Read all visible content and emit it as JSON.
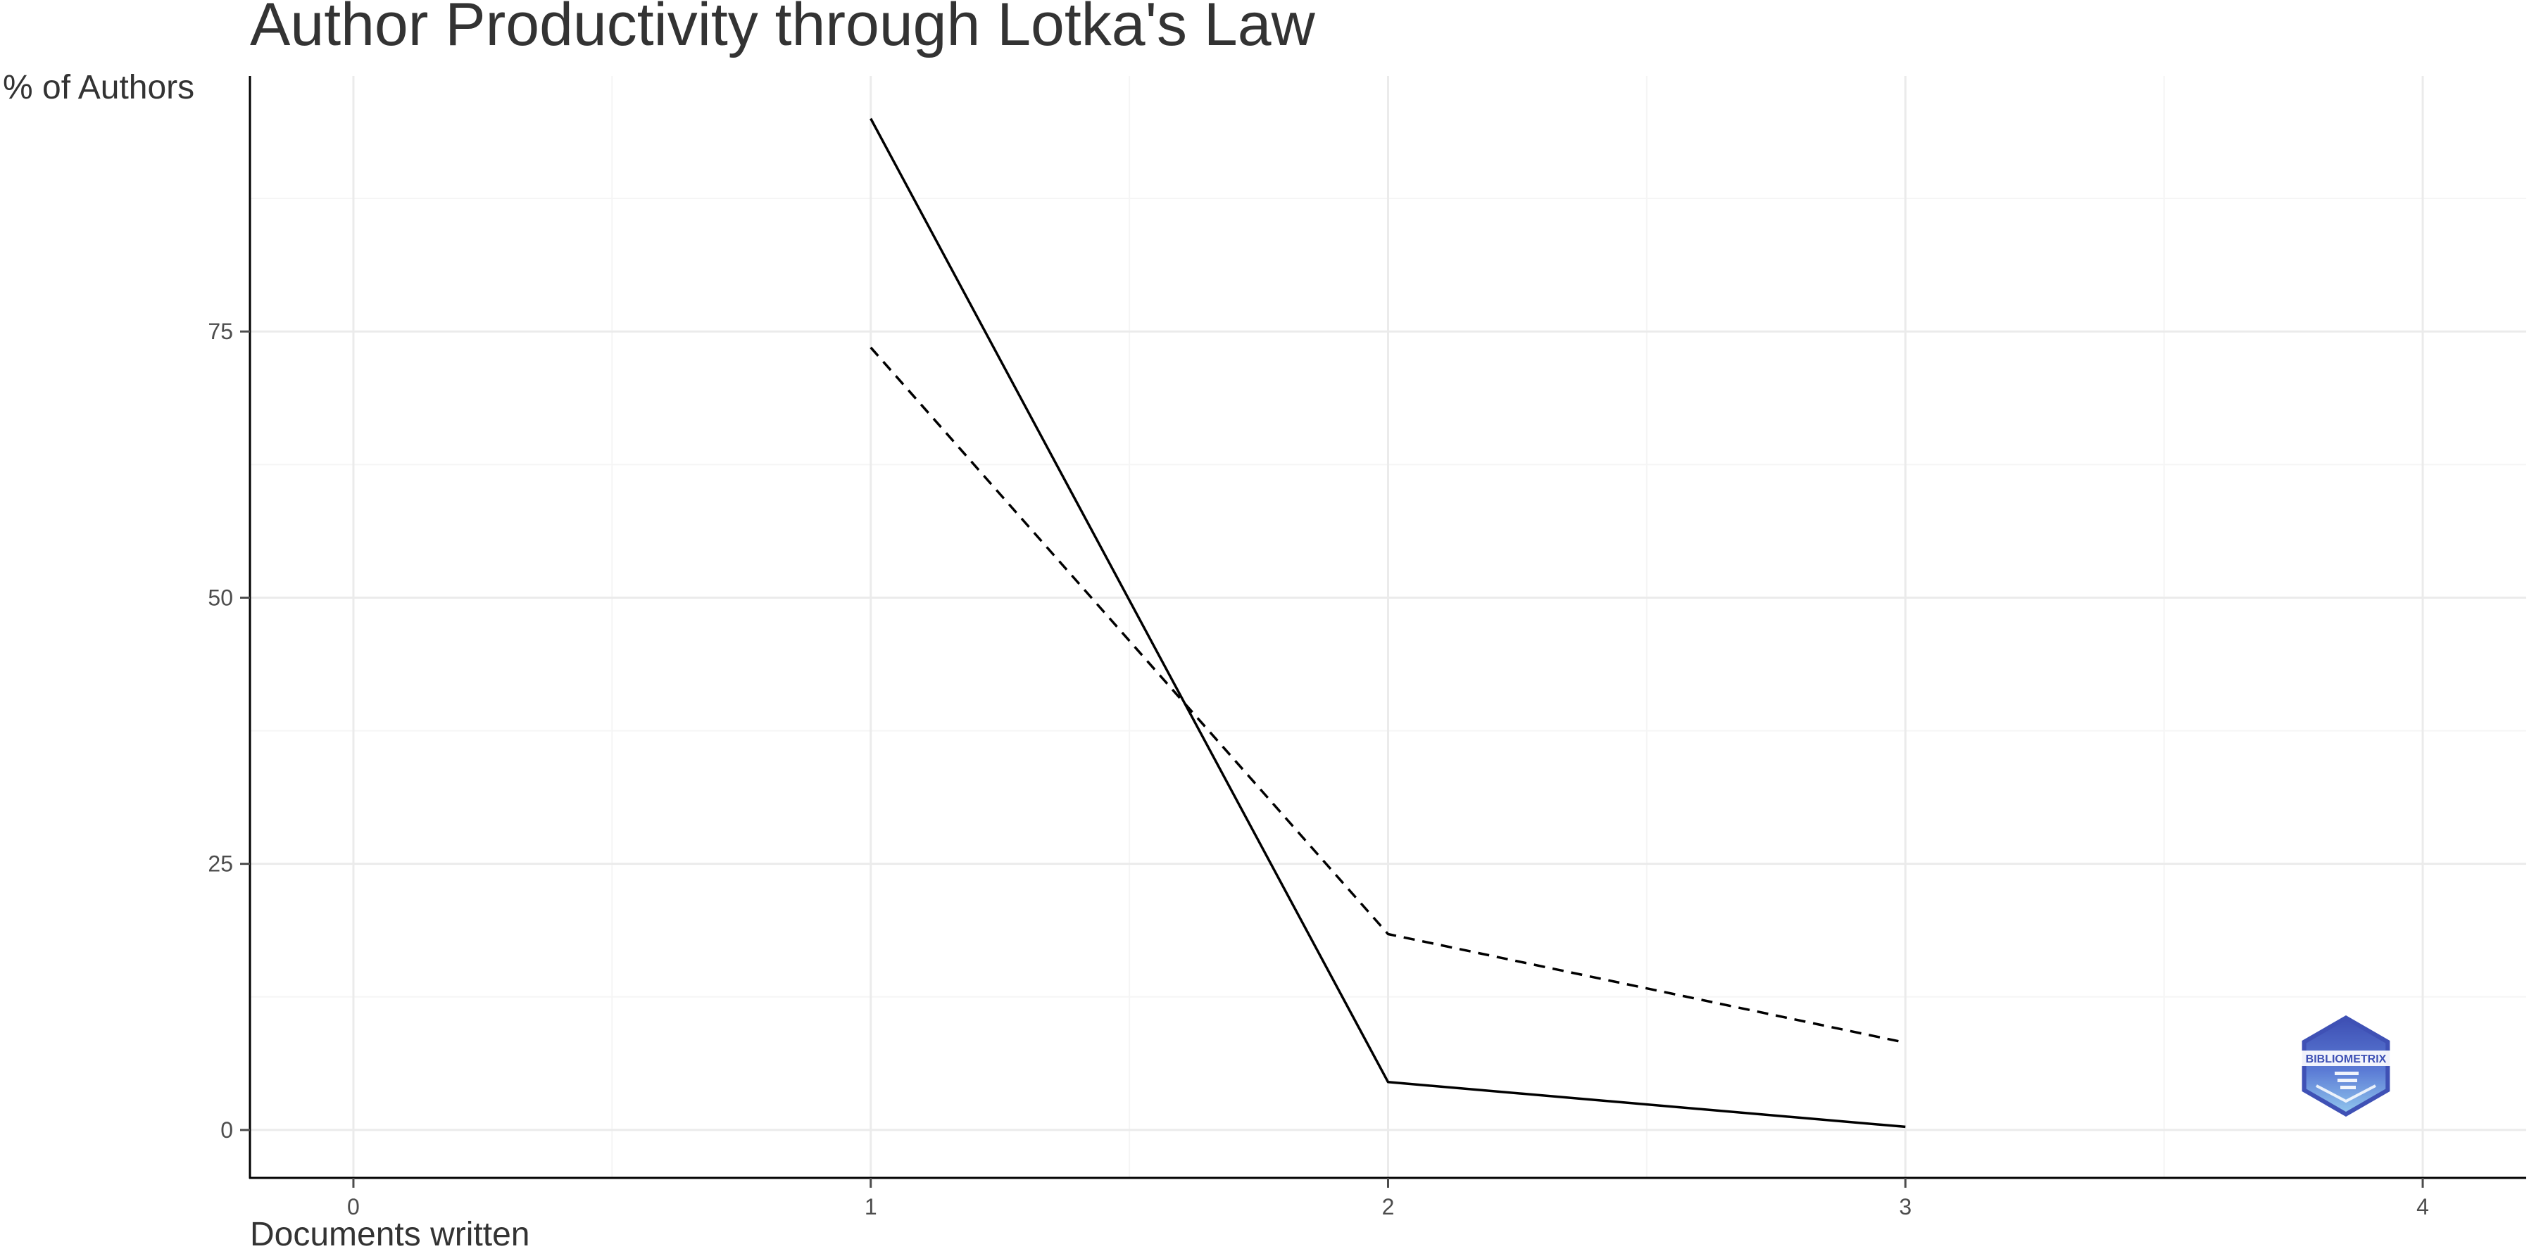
{
  "chart_data": {
    "type": "line",
    "title": "Author Productivity through Lotka's Law",
    "xlabel": "Documents written",
    "ylabel": "% of Authors",
    "xlim": [
      -0.2,
      4.2
    ],
    "ylim": [
      -4.5,
      99
    ],
    "x_ticks": [
      0,
      1,
      2,
      3,
      4
    ],
    "y_ticks": [
      0,
      25,
      50,
      75
    ],
    "grid": true,
    "legend": "none",
    "series": [
      {
        "style": "solid",
        "color": "#000000",
        "x": [
          1,
          2,
          3
        ],
        "y": [
          95,
          4.5,
          0.3
        ]
      },
      {
        "style": "dashed",
        "color": "#000000",
        "x": [
          1,
          2,
          3
        ],
        "y": [
          73.5,
          18.4,
          8.2
        ]
      }
    ],
    "logo": {
      "text": "BIBLIOMETRIX",
      "colors": [
        "#3f51b5",
        "#5b7bd5",
        "#8fc3ec"
      ]
    },
    "colors": {
      "text": "#333333",
      "tick_label": "#4d4d4d",
      "grid_major": "#ebebeb",
      "grid_minor": "#f5f5f5",
      "axis": "#000000"
    }
  }
}
